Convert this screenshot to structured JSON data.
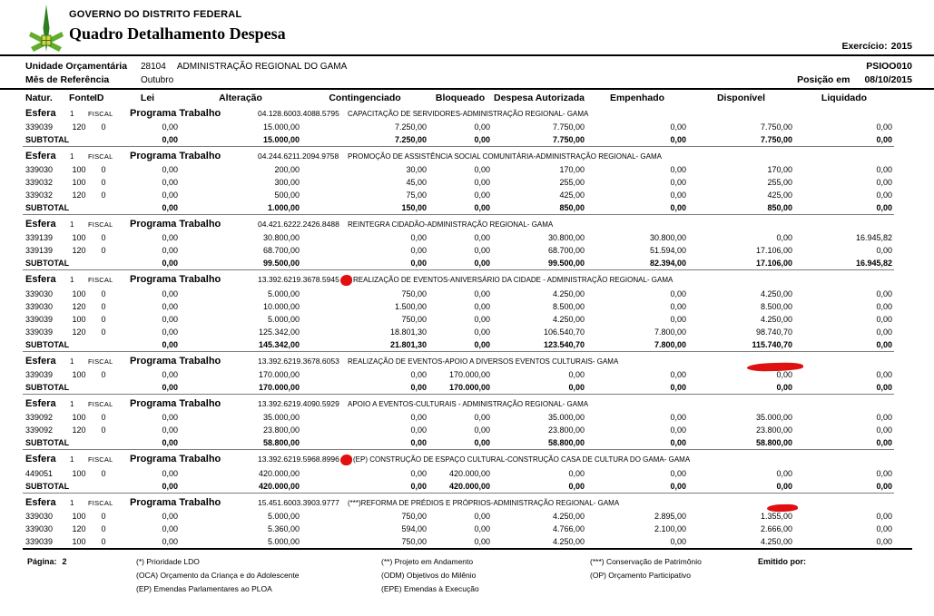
{
  "report": {
    "org": "GOVERNO DO DISTRITO FEDERAL",
    "title": "Quadro Detalhamento Despesa",
    "exercicio_label": "Exercício:",
    "exercicio": "2015",
    "report_code": "PSIOO010",
    "posicao_label": "Posição em",
    "posicao_date": "08/10/2015",
    "unidade_label": "Unidade Orçamentária",
    "unidade_code": "28104",
    "unidade_name": "ADMINISTRAÇÃO REGIONAL DO GAMA",
    "mes_label": "Mês de Referência",
    "mes": "Outubro"
  },
  "table": {
    "columns": [
      "Natur.",
      "Fonte",
      "ID",
      "Lei",
      "Alteração",
      "Contingenciado",
      "Bloqueado",
      "Despesa Autorizada",
      "Empenhado",
      "Disponível",
      "Liquidado"
    ],
    "esfera_label": "Esfera",
    "esfera_number": "1",
    "esfera_type": "FISCAL",
    "programa_label": "Programa Trabalho",
    "subtotal_label": "SUBTOTAL",
    "groups": [
      {
        "code": "04.128.6003.4088.5795",
        "desc": "CAPACITAÇÃO DE SERVIDORES-ADMINISTRAÇÃO REGIONAL- GAMA",
        "mark": null,
        "rows": [
          {
            "natur": "339039",
            "fonte": "120",
            "id": "0",
            "v": [
              "0,00",
              "15.000,00",
              "7.250,00",
              "0,00",
              "7.750,00",
              "0,00",
              "7.750,00",
              "0,00"
            ]
          }
        ],
        "subtotal": [
          "0,00",
          "15.000,00",
          "7.250,00",
          "0,00",
          "7.750,00",
          "0,00",
          "7.750,00",
          "0,00"
        ]
      },
      {
        "code": "04.244.6211.2094.9758",
        "desc": "PROMOÇÃO DE ASSISTÊNCIA SOCIAL COMUNITÁRIA-ADMINISTRAÇÃO REGIONAL- GAMA",
        "mark": null,
        "rows": [
          {
            "natur": "339030",
            "fonte": "100",
            "id": "0",
            "v": [
              "0,00",
              "200,00",
              "30,00",
              "0,00",
              "170,00",
              "0,00",
              "170,00",
              "0,00"
            ]
          },
          {
            "natur": "339032",
            "fonte": "100",
            "id": "0",
            "v": [
              "0,00",
              "300,00",
              "45,00",
              "0,00",
              "255,00",
              "0,00",
              "255,00",
              "0,00"
            ]
          },
          {
            "natur": "339032",
            "fonte": "120",
            "id": "0",
            "v": [
              "0,00",
              "500,00",
              "75,00",
              "0,00",
              "425,00",
              "0,00",
              "425,00",
              "0,00"
            ]
          }
        ],
        "subtotal": [
          "0,00",
          "1.000,00",
          "150,00",
          "0,00",
          "850,00",
          "0,00",
          "850,00",
          "0,00"
        ]
      },
      {
        "code": "04.421.6222.2426.8488",
        "desc": "REINTEGRA CIDADÃO-ADMINISTRAÇÃO REGIONAL- GAMA",
        "mark": null,
        "rows": [
          {
            "natur": "339139",
            "fonte": "100",
            "id": "0",
            "v": [
              "0,00",
              "30.800,00",
              "0,00",
              "0,00",
              "30.800,00",
              "30.800,00",
              "0,00",
              "16.945,82"
            ]
          },
          {
            "natur": "339139",
            "fonte": "120",
            "id": "0",
            "v": [
              "0,00",
              "68.700,00",
              "0,00",
              "0,00",
              "68.700,00",
              "51.594,00",
              "17.106,00",
              "0,00"
            ]
          }
        ],
        "subtotal": [
          "0,00",
          "99.500,00",
          "0,00",
          "0,00",
          "99.500,00",
          "82.394,00",
          "17.106,00",
          "16.945,82"
        ]
      },
      {
        "code": "13.392.6219.3678.5945",
        "desc": "REALIZAÇÃO DE EVENTOS-ANIVERSÁRIO DA CIDADE - ADMINISTRAÇÃO REGIONAL- GAMA",
        "mark": "dot",
        "rows": [
          {
            "natur": "339030",
            "fonte": "100",
            "id": "0",
            "v": [
              "0,00",
              "5.000,00",
              "750,00",
              "0,00",
              "4.250,00",
              "0,00",
              "4.250,00",
              "0,00"
            ]
          },
          {
            "natur": "339030",
            "fonte": "120",
            "id": "0",
            "v": [
              "0,00",
              "10.000,00",
              "1.500,00",
              "0,00",
              "8.500,00",
              "0,00",
              "8.500,00",
              "0,00"
            ]
          },
          {
            "natur": "339039",
            "fonte": "100",
            "id": "0",
            "v": [
              "0,00",
              "5.000,00",
              "750,00",
              "0,00",
              "4.250,00",
              "0,00",
              "4.250,00",
              "0,00"
            ]
          },
          {
            "natur": "339039",
            "fonte": "120",
            "id": "0",
            "v": [
              "0,00",
              "125.342,00",
              "18.801,30",
              "0,00",
              "106.540,70",
              "7.800,00",
              "98.740,70",
              "0,00"
            ]
          }
        ],
        "subtotal": [
          "0,00",
          "145.342,00",
          "21.801,30",
          "0,00",
          "123.540,70",
          "7.800,00",
          "115.740,70",
          "0,00"
        ]
      },
      {
        "code": "13.392.6219.3678.6053",
        "desc": "REALIZAÇÃO DE EVENTOS-APOIO A DIVERSOS EVENTOS CULTURAIS- GAMA",
        "mark": "scribble-large",
        "rows": [
          {
            "natur": "339039",
            "fonte": "100",
            "id": "0",
            "v": [
              "0,00",
              "170.000,00",
              "0,00",
              "170.000,00",
              "0,00",
              "0,00",
              "0,00",
              "0,00"
            ]
          }
        ],
        "subtotal": [
          "0,00",
          "170.000,00",
          "0,00",
          "170.000,00",
          "0,00",
          "0,00",
          "0,00",
          "0,00"
        ]
      },
      {
        "code": "13.392.6219.4090.5929",
        "desc": "APOIO A EVENTOS-CULTURAIS - ADMINISTRAÇÃO REGIONAL- GAMA",
        "mark": null,
        "rows": [
          {
            "natur": "339092",
            "fonte": "100",
            "id": "0",
            "v": [
              "0,00",
              "35.000,00",
              "0,00",
              "0,00",
              "35.000,00",
              "0,00",
              "35.000,00",
              "0,00"
            ]
          },
          {
            "natur": "339092",
            "fonte": "120",
            "id": "0",
            "v": [
              "0,00",
              "23.800,00",
              "0,00",
              "0,00",
              "23.800,00",
              "0,00",
              "23.800,00",
              "0,00"
            ]
          }
        ],
        "subtotal": [
          "0,00",
          "58.800,00",
          "0,00",
          "0,00",
          "58.800,00",
          "0,00",
          "58.800,00",
          "0,00"
        ]
      },
      {
        "code": "13.392.6219.5968.8996",
        "desc": "(EP) CONSTRUÇÃO DE ESPAÇO CULTURAL-CONSTRUÇÃO CASA DE CULTURA DO GAMA- GAMA",
        "mark": "dot",
        "rows": [
          {
            "natur": "449051",
            "fonte": "100",
            "id": "0",
            "v": [
              "0,00",
              "420.000,00",
              "0,00",
              "420.000,00",
              "0,00",
              "0,00",
              "0,00",
              "0,00"
            ]
          }
        ],
        "subtotal": [
          "0,00",
          "420.000,00",
          "0,00",
          "420.000,00",
          "0,00",
          "0,00",
          "0,00",
          "0,00"
        ]
      },
      {
        "code": "15.451.6003.3903.9777",
        "desc": "(***)REFORMA DE PRÉDIOS E PRÓPRIOS-ADMINISTRAÇÃO REGIONAL- GAMA",
        "mark": "scribble-small",
        "rows": [
          {
            "natur": "339030",
            "fonte": "100",
            "id": "0",
            "v": [
              "0,00",
              "5.000,00",
              "750,00",
              "0,00",
              "4.250,00",
              "2.895,00",
              "1.355,00",
              "0,00"
            ]
          },
          {
            "natur": "339030",
            "fonte": "120",
            "id": "0",
            "v": [
              "0,00",
              "5.360,00",
              "594,00",
              "0,00",
              "4.766,00",
              "2.100,00",
              "2.666,00",
              "0,00"
            ]
          },
          {
            "natur": "339039",
            "fonte": "100",
            "id": "0",
            "v": [
              "0,00",
              "5.000,00",
              "750,00",
              "0,00",
              "4.250,00",
              "0,00",
              "4.250,00",
              "0,00"
            ]
          }
        ],
        "subtotal": null
      }
    ]
  },
  "footer": {
    "pagina_label": "Página:",
    "pagina": "2",
    "legend_col1": [
      "(*)  Prioridade LDO",
      "(OCA)  Orçamento da Criança e do Adolescente",
      "(EP)  Emendas Parlamentares ao PLOA"
    ],
    "legend_col2": [
      "(**)  Projeto em Andamento",
      "(ODM) Objetivos do Milênio",
      "(EPE) Emendas à Execução"
    ],
    "legend_col3": [
      "(***)  Conservação de Patrimônio",
      "(OP) Orçamento Participativo"
    ],
    "emitido_label": "Emitido por:"
  },
  "annotations": {
    "color": "#e01010",
    "marks": [
      {
        "type": "dot",
        "location": "after program code 13.392.6219.3678.5945"
      },
      {
        "type": "scribble",
        "location": "Disponível column of header row 13.392.6219.3678.6053"
      },
      {
        "type": "dot",
        "location": "after program code 13.392.6219.5968.8996"
      },
      {
        "type": "scribble",
        "location": "Disponível column of header row 15.451.6003.3903.9777"
      }
    ]
  }
}
